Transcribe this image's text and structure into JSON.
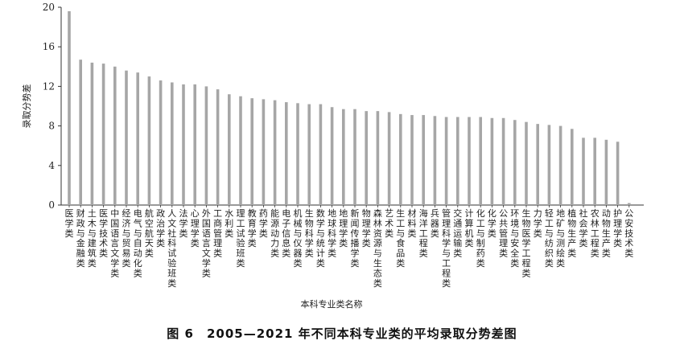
{
  "figure_caption": "图 6　2005—2021 年不同本科专业类的平均录取分势差图",
  "chart_data": {
    "type": "bar",
    "title": "",
    "xlabel": "本科专业类名称",
    "ylabel": "录取分势差",
    "ylim": [
      0,
      20
    ],
    "yticks": [
      0,
      4,
      8,
      12,
      16,
      20
    ],
    "grid": false,
    "bar_color": "#a6a6a6",
    "categories": [
      "医学类",
      "财政与金融类",
      "土木与建筑类",
      "医学技术类",
      "中国语言文学类",
      "经济与贸易类",
      "电气与自动化类",
      "航空航天类",
      "政治学类",
      "人文社科试验班类",
      "法学类",
      "心理学类",
      "外国语言文学类",
      "工商管理类",
      "水利类",
      "理工试验班类",
      "教育学类",
      "药学类",
      "能源动力类",
      "电子信息类",
      "机械与仪器类",
      "生物科学类",
      "数学与统计类",
      "地球科学类",
      "地理学类",
      "新闻传播学类",
      "物理学类",
      "森林资源与生态类",
      "艺术类",
      "生工与食品类",
      "材料类",
      "海洋工程类",
      "兵器类",
      "管理科学与工程类",
      "交通运输类",
      "计算机类",
      "化工与制药类",
      "化学类",
      "公共管理类",
      "环境与安全类",
      "生物医学工程类",
      "力学类",
      "轻工与纺织类",
      "地矿与测绘类",
      "植物生产类",
      "社会学类",
      "农林工程类",
      "动物生产类",
      "护理学类",
      "公安技术类"
    ],
    "values": [
      19.6,
      14.7,
      14.4,
      14.3,
      14.0,
      13.6,
      13.4,
      13.0,
      12.6,
      12.4,
      12.2,
      12.2,
      12.0,
      11.7,
      11.2,
      11.0,
      10.8,
      10.7,
      10.6,
      10.4,
      10.3,
      10.2,
      10.2,
      9.9,
      9.7,
      9.7,
      9.5,
      9.5,
      9.4,
      9.2,
      9.1,
      9.1,
      9.0,
      8.9,
      8.9,
      8.9,
      8.9,
      8.8,
      8.8,
      8.6,
      8.4,
      8.2,
      8.1,
      8.0,
      7.7,
      6.8,
      6.8,
      6.6,
      6.4,
      0.2
    ]
  }
}
